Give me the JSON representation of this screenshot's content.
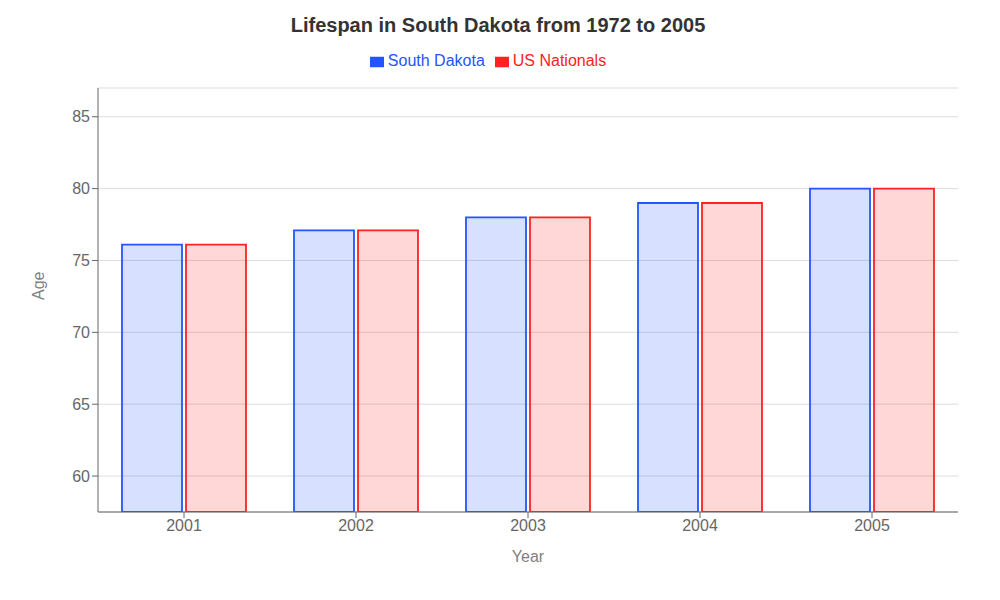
{
  "chart_data": {
    "type": "bar",
    "title": "Lifespan in South Dakota from 1972 to 2005",
    "xlabel": "Year",
    "ylabel": "Age",
    "categories": [
      "2001",
      "2002",
      "2003",
      "2004",
      "2005"
    ],
    "series": [
      {
        "name": "South Dakota",
        "color": "#2255ff",
        "values": [
          76.1,
          77.1,
          78.0,
          79.0,
          80.0
        ]
      },
      {
        "name": "US Nationals",
        "color": "#ff2222",
        "values": [
          76.1,
          77.1,
          78.0,
          79.0,
          80.0
        ]
      }
    ],
    "ylim": [
      57.5,
      87
    ],
    "yticks": [
      60,
      65,
      70,
      75,
      80,
      85
    ],
    "grid": true,
    "legend": "top"
  }
}
